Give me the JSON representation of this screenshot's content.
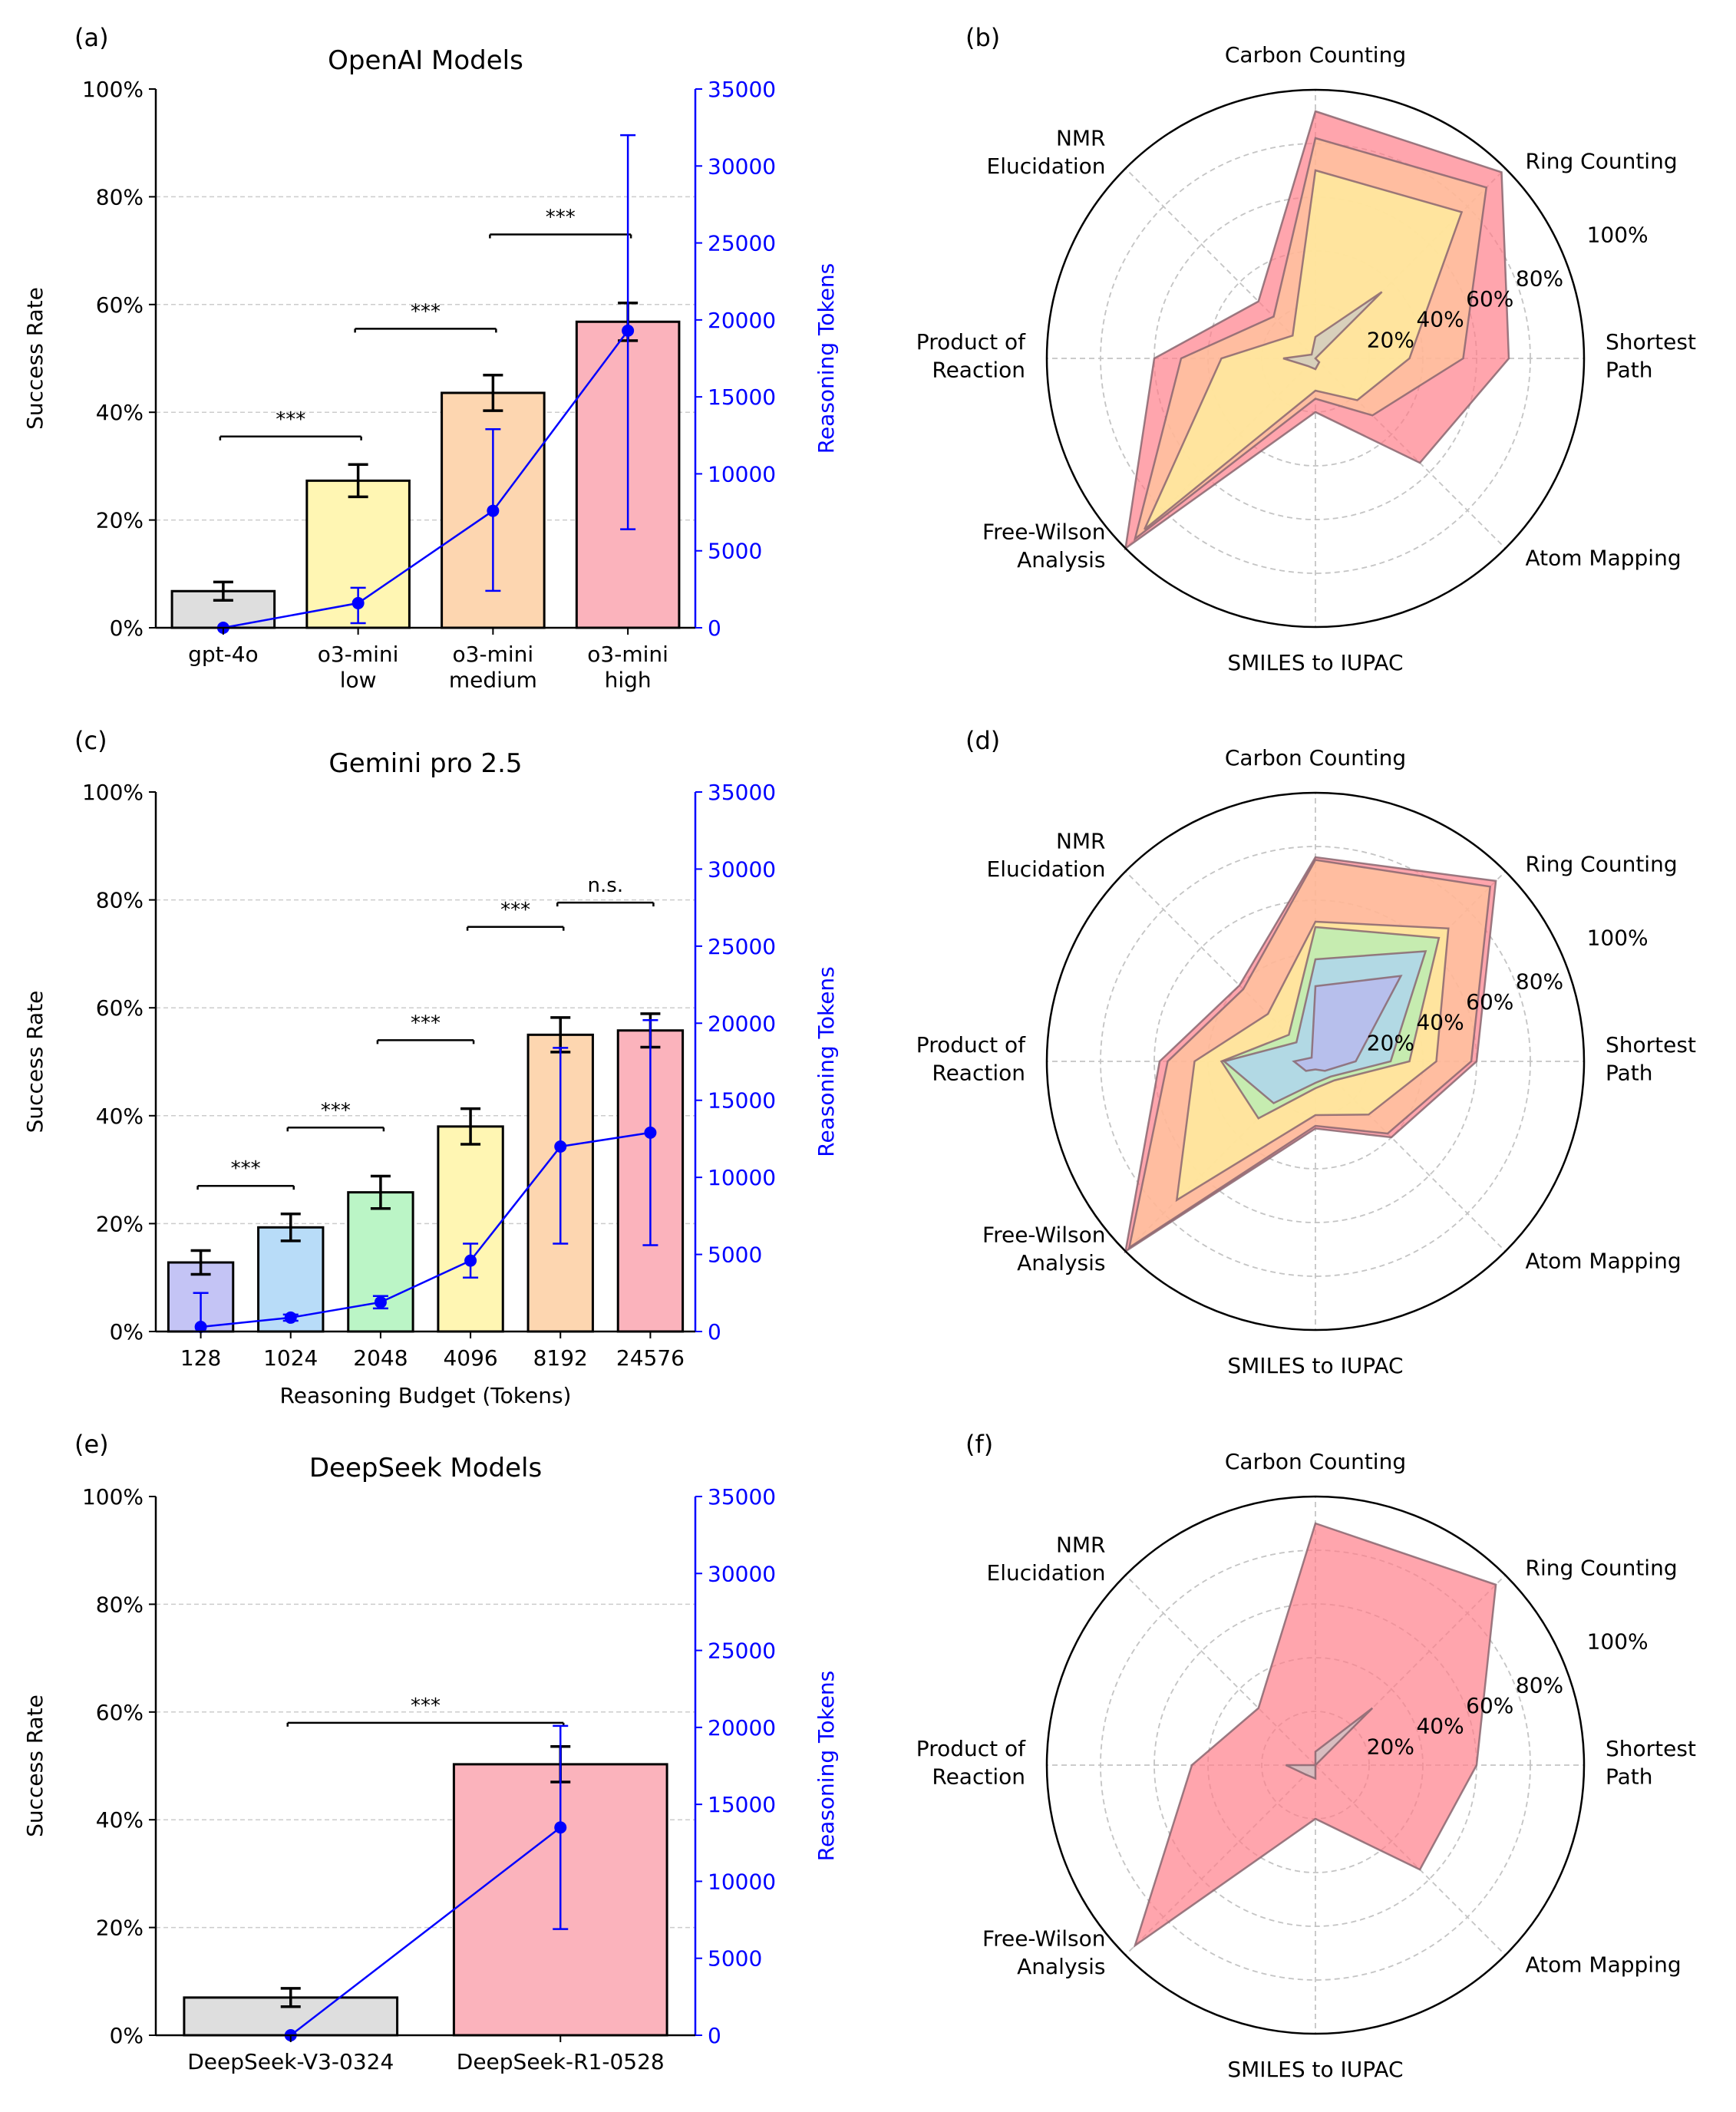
{
  "chart_data": [
    {
      "panel": "(a)",
      "type": "bar",
      "title": "OpenAI Models",
      "xlabel": "",
      "ylabel": "Success Rate",
      "y2label": "Reasoning Tokens",
      "ylim": [
        0,
        100
      ],
      "y2lim": [
        0,
        35000
      ],
      "yticks": [
        "0%",
        "20%",
        "40%",
        "60%",
        "80%",
        "100%"
      ],
      "y2ticks": [
        "0",
        "5000",
        "10000",
        "15000",
        "20000",
        "25000",
        "30000",
        "35000"
      ],
      "categories": [
        "gpt-4o",
        "o3-mini\nlow",
        "o3-mini\nmedium",
        "o3-mini\nhigh"
      ],
      "colors": [
        "#dedede",
        "#fff6b3",
        "#fdd6b0",
        "#fbb3bc"
      ],
      "values": [
        6.8,
        27.3,
        43.6,
        56.8
      ],
      "errors": [
        1.7,
        3.0,
        3.3,
        3.5
      ],
      "tokens": {
        "values": [
          0,
          1600,
          7600,
          19300
        ],
        "lower": [
          0,
          300,
          2400,
          6400
        ],
        "upper": [
          0,
          2600,
          12900,
          32000
        ]
      },
      "significance": [
        {
          "from": 0,
          "to": 1,
          "y": 35.5,
          "label": "***"
        },
        {
          "from": 1,
          "to": 2,
          "y": 55.5,
          "label": "***"
        },
        {
          "from": 2,
          "to": 3,
          "y": 73,
          "label": "***"
        }
      ]
    },
    {
      "panel": "(b)",
      "type": "radar",
      "axes": [
        "Carbon Counting",
        "Ring Counting",
        "Shortest\nPath",
        "Atom Mapping",
        "SMILES to IUPAC",
        "Free-Wilson\nAnalysis",
        "Product of\nReaction",
        "NMR\nElucidation"
      ],
      "rticks": [
        "20%",
        "40%",
        "60%",
        "80%",
        "100%"
      ],
      "series": [
        {
          "color": "#ff7f8a",
          "values": [
            92,
            98,
            72,
            55,
            20,
            100,
            60,
            30
          ]
        },
        {
          "color": "#ffc79a",
          "values": [
            82,
            90,
            55,
            30,
            15,
            95,
            50,
            22
          ]
        },
        {
          "color": "#fff59d",
          "values": [
            70,
            77,
            35,
            22,
            12,
            90,
            35,
            12
          ]
        },
        {
          "color": "#c8c8c8",
          "values": [
            8,
            35,
            0,
            2,
            4,
            4,
            12,
            2
          ]
        }
      ]
    },
    {
      "panel": "(c)",
      "type": "bar",
      "title": "Gemini pro 2.5",
      "xlabel": "Reasoning Budget (Tokens)",
      "ylabel": "Success Rate",
      "y2label": "Reasoning Tokens",
      "ylim": [
        0,
        100
      ],
      "y2lim": [
        0,
        35000
      ],
      "yticks": [
        "0%",
        "20%",
        "40%",
        "60%",
        "80%",
        "100%"
      ],
      "y2ticks": [
        "0",
        "5000",
        "10000",
        "15000",
        "20000",
        "25000",
        "30000",
        "35000"
      ],
      "categories": [
        "128",
        "1024",
        "2048",
        "4096",
        "8192",
        "24576"
      ],
      "colors": [
        "#c4c4f5",
        "#b8dcf8",
        "#bbf5c6",
        "#fff6b3",
        "#fdd6b0",
        "#fbb3bc"
      ],
      "values": [
        12.8,
        19.3,
        25.8,
        38.0,
        55.0,
        55.8
      ],
      "errors": [
        2.2,
        2.5,
        3.0,
        3.3,
        3.2,
        3.1
      ],
      "tokens": {
        "values": [
          300,
          900,
          1900,
          4600,
          12000,
          12900
        ],
        "lower": [
          0,
          700,
          1500,
          3500,
          5700,
          5600
        ],
        "upper": [
          2500,
          1100,
          2300,
          5700,
          18400,
          20200
        ]
      },
      "significance": [
        {
          "from": 0,
          "to": 1,
          "y": 27,
          "label": "***"
        },
        {
          "from": 1,
          "to": 2,
          "y": 37.8,
          "label": "***"
        },
        {
          "from": 2,
          "to": 3,
          "y": 54,
          "label": "***"
        },
        {
          "from": 3,
          "to": 4,
          "y": 75,
          "label": "***"
        },
        {
          "from": 4,
          "to": 5,
          "y": 79.5,
          "label": "n.s."
        }
      ]
    },
    {
      "panel": "(d)",
      "type": "radar",
      "axes": [
        "Carbon Counting",
        "Ring Counting",
        "Shortest\nPath",
        "Atom Mapping",
        "SMILES to IUPAC",
        "Free-Wilson\nAnalysis",
        "Product of\nReaction",
        "NMR\nElucidation"
      ],
      "rticks": [
        "20%",
        "40%",
        "60%",
        "80%",
        "100%"
      ],
      "series": [
        {
          "color": "#ff7f8a",
          "values": [
            76,
            95,
            60,
            40,
            25,
            100,
            58,
            40
          ]
        },
        {
          "color": "#ffc79a",
          "values": [
            75,
            92,
            58,
            38,
            24,
            98,
            55,
            38
          ]
        },
        {
          "color": "#fff59d",
          "values": [
            52,
            70,
            45,
            28,
            20,
            73,
            45,
            25
          ]
        },
        {
          "color": "#aef0b8",
          "values": [
            50,
            65,
            35,
            10,
            10,
            30,
            35,
            14
          ]
        },
        {
          "color": "#a9d1fb",
          "values": [
            38,
            58,
            28,
            8,
            8,
            22,
            34,
            10
          ]
        },
        {
          "color": "#b9b3f0",
          "values": [
            28,
            45,
            15,
            5,
            3,
            5,
            8,
            2
          ]
        }
      ]
    },
    {
      "panel": "(e)",
      "type": "bar",
      "title": "DeepSeek Models",
      "xlabel": "",
      "ylabel": "Success Rate",
      "y2label": "Reasoning Tokens",
      "ylim": [
        0,
        100
      ],
      "y2lim": [
        0,
        35000
      ],
      "yticks": [
        "0%",
        "20%",
        "40%",
        "60%",
        "80%",
        "100%"
      ],
      "y2ticks": [
        "0",
        "5000",
        "10000",
        "15000",
        "20000",
        "25000",
        "30000",
        "35000"
      ],
      "categories": [
        "DeepSeek-V3-0324",
        "DeepSeek-R1-0528"
      ],
      "colors": [
        "#dedede",
        "#fbb3bc"
      ],
      "values": [
        7.0,
        50.3
      ],
      "errors": [
        1.7,
        3.3
      ],
      "tokens": {
        "values": [
          0,
          13500
        ],
        "lower": [
          0,
          6900
        ],
        "upper": [
          0,
          20100
        ]
      },
      "significance": [
        {
          "from": 0,
          "to": 1,
          "y": 58,
          "label": "***"
        }
      ]
    },
    {
      "panel": "(f)",
      "type": "radar",
      "axes": [
        "Carbon Counting",
        "Ring Counting",
        "Shortest\nPath",
        "Atom Mapping",
        "SMILES to IUPAC",
        "Free-Wilson\nAnalysis",
        "Product of\nReaction",
        "NMR\nElucidation"
      ],
      "rticks": [
        "20%",
        "40%",
        "60%",
        "80%",
        "100%"
      ],
      "series": [
        {
          "color": "#ff7f8a",
          "values": [
            90,
            95,
            60,
            55,
            20,
            95,
            46,
            30
          ]
        },
        {
          "color": "#c8c8c8",
          "values": [
            5,
            30,
            0,
            0,
            5,
            5,
            11,
            0
          ]
        }
      ]
    }
  ]
}
